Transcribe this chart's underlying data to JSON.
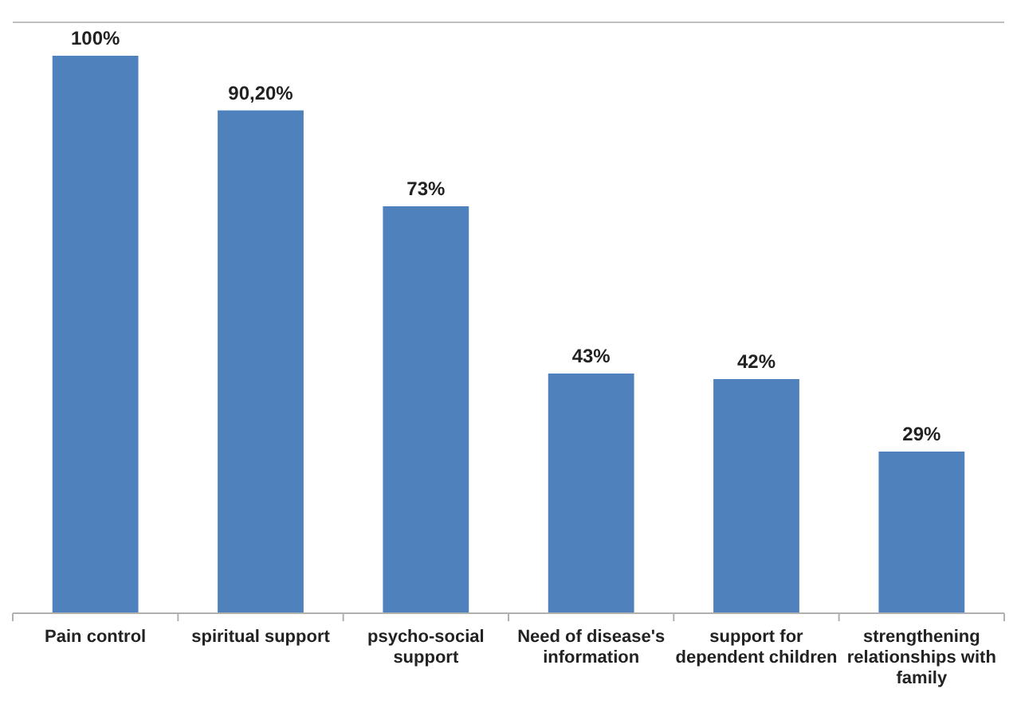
{
  "chart_data": {
    "type": "bar",
    "categories": [
      "Pain control",
      "spiritual support",
      "psycho-social support",
      "Need of disease's information",
      "support for dependent children",
      "strengthening relationships with family"
    ],
    "values": [
      100,
      90.2,
      73,
      43,
      42,
      29
    ],
    "value_labels": [
      "100%",
      "90,20%",
      "73%",
      "43%",
      "42%",
      "29%"
    ],
    "color": "#4f81bd"
  }
}
